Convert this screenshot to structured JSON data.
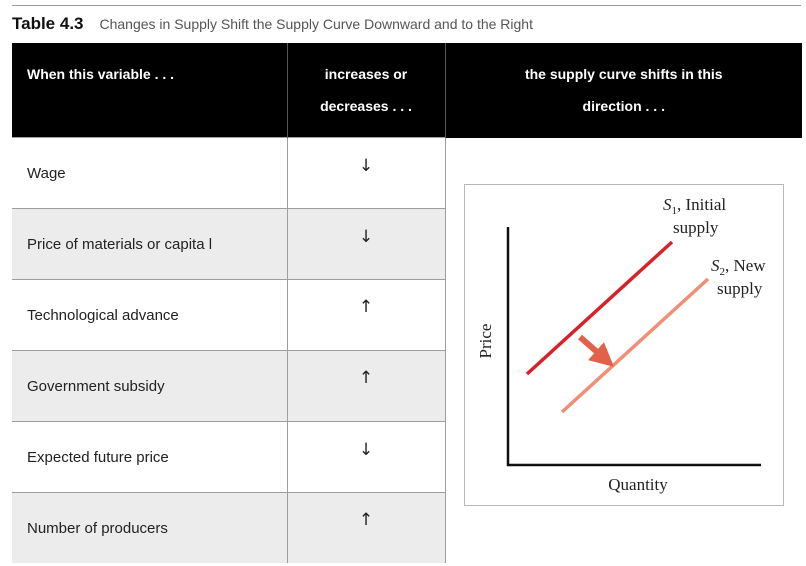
{
  "caption": {
    "label": "Table 4.3",
    "text": "Changes in Supply Shift the Supply Curve Downward and to the Right"
  },
  "table": {
    "headers": {
      "variable": "When this variable . . .",
      "change_line1": "increases or",
      "change_line2": "decreases . . .",
      "direction_line1": "the supply curve shifts in this",
      "direction_line2": "direction . . ."
    },
    "rows": [
      {
        "variable": "Wage",
        "arrow": "↓"
      },
      {
        "variable": "Price of materials or capita l",
        "arrow": "↓"
      },
      {
        "variable": "Technological advance",
        "arrow": "↑"
      },
      {
        "variable": "Government subsidy",
        "arrow": "↑"
      },
      {
        "variable": "Expected future price",
        "arrow": "↓"
      },
      {
        "variable": "Number of producers",
        "arrow": "↑"
      }
    ]
  },
  "graph": {
    "s1_symbol": "S",
    "s1_subscript": "1",
    "s1_text_line1": ", Initial",
    "s1_text_line2": "supply",
    "s2_symbol": "S",
    "s2_subscript": "2",
    "s2_text_line1": ", New",
    "s2_text_line2": "supply",
    "y_axis_label": "Price",
    "x_axis_label": "Quantity",
    "colors": {
      "s1_line": "#d7222a",
      "s2_line": "#ef8f78",
      "shift_arrow": "#e2614a"
    }
  }
}
